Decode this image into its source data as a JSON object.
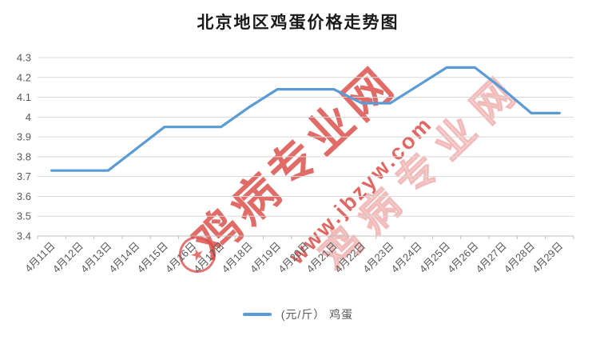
{
  "title": "北京地区鸡蛋价格走势图",
  "legend": {
    "label": "(元/斤） 鸡蛋"
  },
  "watermark": {
    "title_text": "鸡病专业网",
    "url_text": "www.jbzyw.com",
    "echo_text": "鸡病专业网",
    "logo_glyph": "★",
    "color": "#D94641"
  },
  "chart_data": {
    "type": "line",
    "title": "北京地区鸡蛋价格走势图",
    "categories": [
      "4月11日",
      "4月12日",
      "4月13日",
      "4月14日",
      "4月15日",
      "4月16日",
      "4月17日",
      "4月18日",
      "4月19日",
      "4月20日",
      "4月21日",
      "4月22日",
      "4月23日",
      "4月24日",
      "4月25日",
      "4月26日",
      "4月27日",
      "4月28日",
      "4月29日"
    ],
    "series": [
      {
        "name": "(元/斤） 鸡蛋",
        "values": [
          3.73,
          3.73,
          3.73,
          3.84,
          3.95,
          3.95,
          3.95,
          4.05,
          4.14,
          4.14,
          4.14,
          4.07,
          4.07,
          4.16,
          4.25,
          4.25,
          4.14,
          4.02,
          4.02
        ]
      }
    ],
    "xlabel": "",
    "ylabel": "",
    "ylim": [
      3.4,
      4.3
    ],
    "ytick_step": 0.1,
    "grid": "horizontal",
    "legend_position": "bottom",
    "line_color": "#5B9BD5",
    "grid_color": "#D9D9D9",
    "axis_color": "#BFBFBF",
    "tick_label_color": "#595959"
  }
}
